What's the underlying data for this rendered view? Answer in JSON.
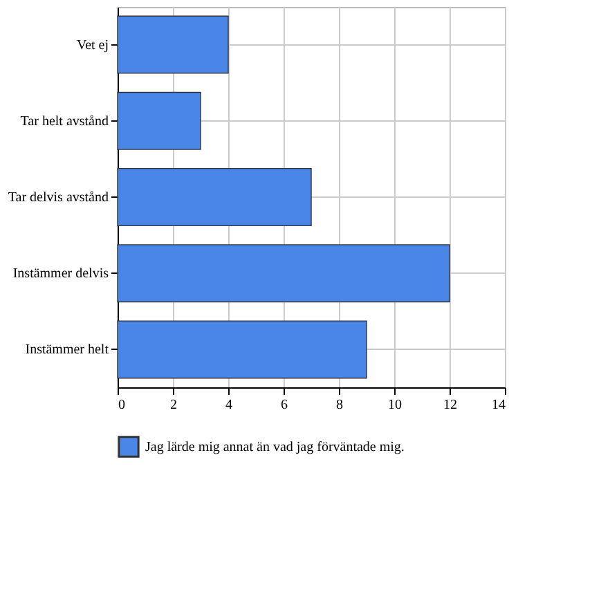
{
  "chart_data": {
    "type": "bar",
    "orientation": "horizontal",
    "categories": [
      "Vet ej",
      "Tar helt avstånd",
      "Tar delvis avstånd",
      "Instämmer delvis",
      "Instämmer helt"
    ],
    "series": [
      {
        "name": "Jag lärde mig annat än vad jag förväntade mig.",
        "color": "#4a86e8",
        "values": [
          4,
          3,
          7,
          12,
          9
        ]
      }
    ],
    "xlim": [
      0,
      14
    ],
    "xticks": [
      0,
      2,
      4,
      6,
      8,
      10,
      12,
      14
    ],
    "grid": true,
    "legend": "bottom left"
  }
}
